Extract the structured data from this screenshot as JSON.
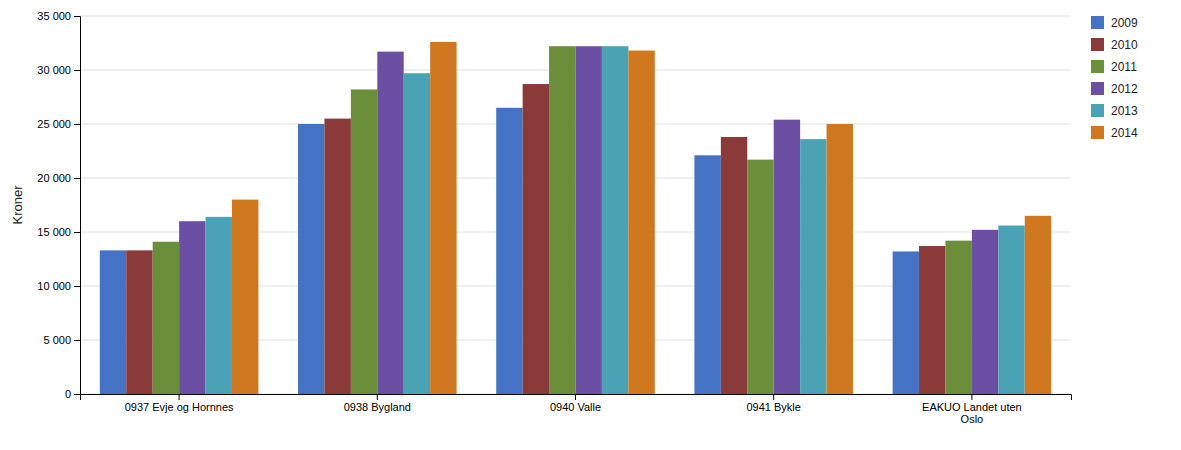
{
  "chart_data": {
    "type": "bar",
    "categories": [
      "0937 Evje og Hornnes",
      "0938 Bygland",
      "0940 Valle",
      "0941 Bykle",
      "EAKUO Landet uten\nOslo"
    ],
    "series": [
      {
        "name": "2009",
        "color": "#4472C4",
        "values": [
          13300,
          25000,
          26500,
          22100,
          13200
        ]
      },
      {
        "name": "2010",
        "color": "#8B3A3A",
        "values": [
          13300,
          25500,
          28700,
          23800,
          13700
        ]
      },
      {
        "name": "2011",
        "color": "#6B8E3A",
        "values": [
          14100,
          28200,
          32200,
          21700,
          14200
        ]
      },
      {
        "name": "2012",
        "color": "#6A4FA3",
        "values": [
          16000,
          31700,
          32200,
          25400,
          15200
        ]
      },
      {
        "name": "2013",
        "color": "#4AA3B5",
        "values": [
          16400,
          29700,
          32200,
          23600,
          15600
        ]
      },
      {
        "name": "2014",
        "color": "#D07820",
        "values": [
          18000,
          32600,
          31800,
          25000,
          16500
        ]
      }
    ],
    "ylabel": "Kroner",
    "ylim": [
      0,
      35000
    ],
    "yticks": [
      0,
      {
        "value": 5000,
        "label": "5 000"
      },
      {
        "value": 10000,
        "label": "10 000"
      },
      {
        "value": 15000,
        "label": "15 000"
      },
      {
        "value": 20000,
        "label": "20 000"
      },
      {
        "value": 25000,
        "label": "25 000"
      },
      {
        "value": 30000,
        "label": "30 000"
      },
      {
        "value": 35000,
        "label": "35 000"
      }
    ],
    "grid": true,
    "legend": "right"
  }
}
